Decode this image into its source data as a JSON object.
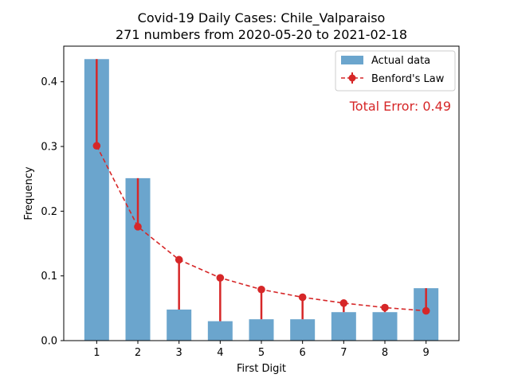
{
  "chart_data": {
    "type": "bar",
    "title_line1": "Covid-19 Daily Cases: Chile_Valparaiso",
    "title_line2": "271 numbers from 2020-05-20 to 2021-02-18",
    "xlabel": "First Digit",
    "ylabel": "Frequency",
    "categories": [
      "1",
      "2",
      "3",
      "4",
      "5",
      "6",
      "7",
      "8",
      "9"
    ],
    "x": [
      1,
      2,
      3,
      4,
      5,
      6,
      7,
      8,
      9
    ],
    "ylim": [
      0,
      0.455
    ],
    "yticks": [
      0.0,
      0.1,
      0.2,
      0.3,
      0.4
    ],
    "ytick_labels": [
      "0.0",
      "0.1",
      "0.2",
      "0.3",
      "0.4"
    ],
    "series": [
      {
        "name": "Actual data",
        "kind": "bar",
        "color": "#5b9bc8",
        "values": [
          0.435,
          0.251,
          0.048,
          0.03,
          0.033,
          0.033,
          0.044,
          0.044,
          0.081
        ]
      },
      {
        "name": "Benford's Law",
        "kind": "line",
        "color": "#d62728",
        "values": [
          0.301,
          0.176,
          0.125,
          0.097,
          0.079,
          0.067,
          0.058,
          0.051,
          0.046
        ]
      }
    ],
    "annotation": "Total Error: 0.49",
    "legend_position": "top-right",
    "grid": false
  }
}
